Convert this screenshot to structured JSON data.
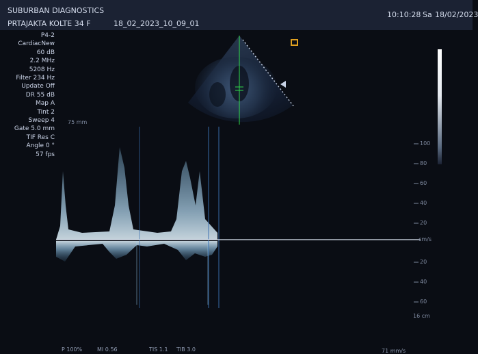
{
  "header": {
    "facility": "SUBURBAN DIAGNOSTICS",
    "patient": "PRTAJAKTA KOLTE 34 F",
    "study_id": "18_02_2023_10_09_01",
    "time": "10:10:28",
    "day": "Sa",
    "date": "18/02/2023"
  },
  "parameters": [
    "P4-2",
    "CardiacNew",
    "60 dB",
    "2.2 MHz",
    "5208 Hz",
    "Filter 234 Hz",
    "Update Off",
    "DR 55 dB",
    "Map A",
    "Tint 2",
    "Sweep 4",
    "Gate 5.0 mm",
    "TIF Res C",
    "Angle 0 °",
    "57 fps"
  ],
  "doppler_scale": {
    "unit": "cm/s",
    "ticks": [
      "100",
      "80",
      "60",
      "40",
      "20",
      "20",
      "40",
      "60"
    ],
    "depth": "16 cm"
  },
  "image_depth_label": "75 mm",
  "footer": {
    "power": "P 100%",
    "mi": "MI 0.56",
    "tis": "TIS 1.1",
    "tib": "TIB 3.0",
    "sweep_speed": "71 mm/s"
  },
  "colors": {
    "header_bg": "#1b2233",
    "doppler_trace": "#bfe6ff",
    "cursor_line": "#2fdc4a",
    "marker": "#e0a020"
  }
}
